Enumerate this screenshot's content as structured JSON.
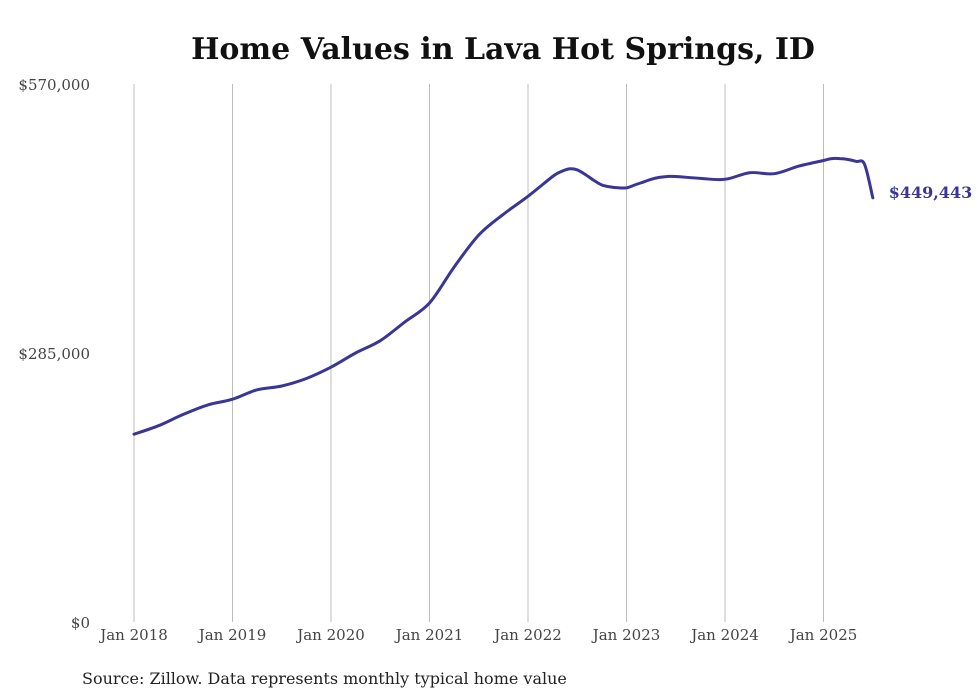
{
  "chart_data": {
    "type": "line",
    "title": "Home Values in Lava Hot Springs, ID",
    "xlabel": "",
    "ylabel": "",
    "ylim": [
      0,
      570000
    ],
    "y_ticks": [
      {
        "value": 0,
        "label": "$0"
      },
      {
        "value": 285000,
        "label": "$285,000"
      },
      {
        "value": 570000,
        "label": "$570,000"
      }
    ],
    "x_ticks": [
      {
        "value": "2018-01",
        "label": "Jan 2018"
      },
      {
        "value": "2019-01",
        "label": "Jan 2019"
      },
      {
        "value": "2020-01",
        "label": "Jan 2020"
      },
      {
        "value": "2021-01",
        "label": "Jan 2021"
      },
      {
        "value": "2022-01",
        "label": "Jan 2022"
      },
      {
        "value": "2023-01",
        "label": "Jan 2023"
      },
      {
        "value": "2024-01",
        "label": "Jan 2024"
      },
      {
        "value": "2025-01",
        "label": "Jan 2025"
      }
    ],
    "grid": "vertical",
    "series": [
      {
        "color": "#3b3596",
        "end_label": "$449,443",
        "x": [
          "2018-01",
          "2018-04",
          "2018-07",
          "2018-10",
          "2019-01",
          "2019-04",
          "2019-07",
          "2019-10",
          "2020-01",
          "2020-04",
          "2020-07",
          "2020-10",
          "2021-01",
          "2021-04",
          "2021-07",
          "2021-10",
          "2022-01",
          "2022-04",
          "2022-05",
          "2022-06",
          "2022-07",
          "2022-08",
          "2022-09",
          "2022-10",
          "2022-11",
          "2022-12",
          "2023-01",
          "2023-02",
          "2023-03",
          "2023-04",
          "2023-05",
          "2023-06",
          "2023-07",
          "2023-10",
          "2024-01",
          "2024-04",
          "2024-07",
          "2024-10",
          "2025-01",
          "2025-02",
          "2025-03",
          "2025-04",
          "2025-05",
          "2025-06",
          "2025-07"
        ],
        "values": [
          199000,
          208000,
          220000,
          230000,
          236000,
          246000,
          250000,
          258000,
          270000,
          285000,
          298000,
          318000,
          338000,
          376000,
          410000,
          432000,
          451000,
          472000,
          477000,
          480000,
          479000,
          474000,
          468000,
          463000,
          461000,
          460000,
          460000,
          463000,
          466000,
          469000,
          471000,
          472000,
          472000,
          470000,
          469000,
          476000,
          475000,
          483000,
          489000,
          491000,
          491000,
          490000,
          488000,
          485000,
          449443
        ]
      }
    ]
  },
  "footer": {
    "source": "Source: Zillow. Data represents monthly typical home value"
  }
}
